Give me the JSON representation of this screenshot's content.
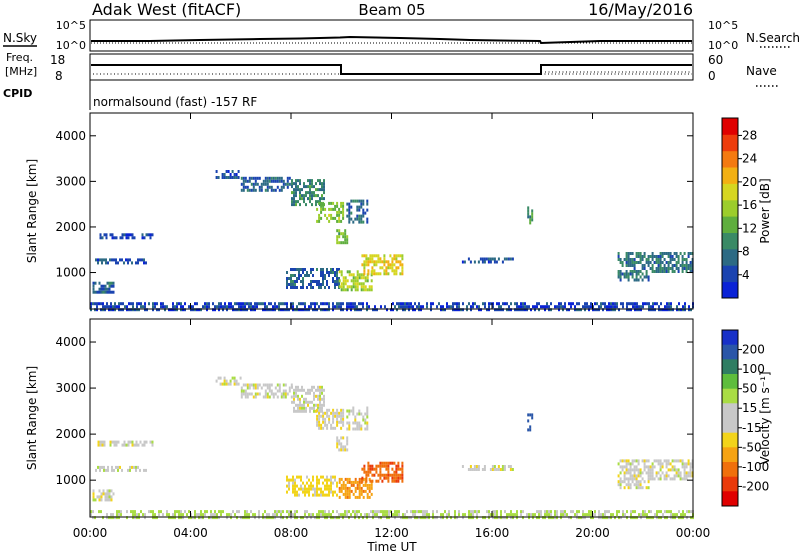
{
  "header": {
    "station": "Adak West (fitACF)",
    "beam": "Beam 05",
    "date": "16/May/2016"
  },
  "noise_panel": {
    "left_label": "N.Sky",
    "right_label": "N.Search",
    "tick_top": "10^5",
    "tick_bottom": "10^0"
  },
  "freq_panel": {
    "left_label_1": "Freq.",
    "left_label_2": "[MHz]",
    "left_ticks": [
      "18",
      "8"
    ],
    "right_label": "Nave",
    "right_ticks": [
      "60",
      "0"
    ]
  },
  "cpid": {
    "label": "CPID",
    "text": "normalsound (fast) -157 RF"
  },
  "chart_data": [
    {
      "type": "heatmap",
      "name": "power",
      "xlabel": "",
      "ylabel": "Slant Range [km]",
      "xlim": [
        0,
        24
      ],
      "ylim": [
        200,
        4500
      ],
      "ytick_labels": [
        "1000",
        "2000",
        "3000",
        "4000"
      ],
      "colorbar": {
        "label": "Power [dB]",
        "tick_labels": [
          "4",
          "8",
          "12",
          "16",
          "20",
          "24",
          "28"
        ],
        "range": [
          0,
          31
        ],
        "colors": [
          "#0a22d6",
          "#1a43b0",
          "#2c6a84",
          "#3a8a66",
          "#5fae3e",
          "#9ccd2c",
          "#d6d620",
          "#f3b012",
          "#f47a10",
          "#ee3c0c",
          "#e00000"
        ]
      },
      "features": [
        {
          "t": [
            0.0,
            24.0
          ],
          "range": [
            200,
            350
          ],
          "value": 4
        },
        {
          "t": [
            0.1,
            0.9
          ],
          "range": [
            600,
            800
          ],
          "value": 6
        },
        {
          "t": [
            0.2,
            2.2
          ],
          "range": [
            1200,
            1310
          ],
          "value": 5
        },
        {
          "t": [
            0.3,
            2.5
          ],
          "range": [
            1780,
            1860
          ],
          "value": 4
        },
        {
          "t": [
            5.0,
            6.0
          ],
          "range": [
            3100,
            3250
          ],
          "value": 5
        },
        {
          "t": [
            6.0,
            8.0
          ],
          "range": [
            2800,
            3100
          ],
          "value": 6
        },
        {
          "t": [
            8.0,
            9.3
          ],
          "range": [
            2500,
            3050
          ],
          "value": 9
        },
        {
          "t": [
            9.0,
            10.1
          ],
          "range": [
            2100,
            2550
          ],
          "value": 14
        },
        {
          "t": [
            9.8,
            10.2
          ],
          "range": [
            1650,
            1950
          ],
          "value": 13
        },
        {
          "t": [
            10.2,
            11.0
          ],
          "range": [
            2100,
            2600
          ],
          "value": 7
        },
        {
          "t": [
            7.8,
            9.9
          ],
          "range": [
            700,
            1100
          ],
          "value": 6
        },
        {
          "t": [
            9.9,
            11.2
          ],
          "range": [
            600,
            1050
          ],
          "value": 16
        },
        {
          "t": [
            10.8,
            12.4
          ],
          "range": [
            950,
            1400
          ],
          "value": 19
        },
        {
          "t": [
            14.8,
            16.8
          ],
          "range": [
            1250,
            1330
          ],
          "value": 5
        },
        {
          "t": [
            17.4,
            17.6
          ],
          "range": [
            2100,
            2450
          ],
          "value": 10
        },
        {
          "t": [
            21.0,
            24.0
          ],
          "range": [
            1050,
            1450
          ],
          "value": 8
        },
        {
          "t": [
            21.0,
            22.2
          ],
          "range": [
            820,
            1000
          ],
          "value": 7
        }
      ]
    },
    {
      "type": "heatmap",
      "name": "velocity",
      "xlabel": "Time UT",
      "ylabel": "Slant Range [km]",
      "xlim": [
        0,
        24
      ],
      "ylim": [
        200,
        4500
      ],
      "xtick_labels": [
        "00:00",
        "04:00",
        "08:00",
        "12:00",
        "16:00",
        "20:00",
        "00:00"
      ],
      "ytick_labels": [
        "1000",
        "2000",
        "3000",
        "4000"
      ],
      "colorbar": {
        "label": "Velocity [m s⁻¹]",
        "tick_labels": [
          "200",
          "100",
          "50",
          "15",
          "-15",
          "-50",
          "-100",
          "-200"
        ],
        "colors": [
          "#1730c8",
          "#2a56a8",
          "#2f7d62",
          "#5ebd3c",
          "#a9dc44",
          "#c8c8c8",
          "#c8c8c8",
          "#f2d41a",
          "#f6a312",
          "#f0700c",
          "#ea3a0a",
          "#e00000"
        ]
      },
      "features": [
        {
          "t": [
            0.0,
            24.0
          ],
          "range": [
            200,
            350
          ],
          "value": 20
        },
        {
          "t": [
            0.1,
            0.9
          ],
          "range": [
            600,
            800
          ],
          "value": 0
        },
        {
          "t": [
            0.2,
            2.2
          ],
          "range": [
            1200,
            1310
          ],
          "value": 0
        },
        {
          "t": [
            0.3,
            2.5
          ],
          "range": [
            1780,
            1860
          ],
          "value": 0
        },
        {
          "t": [
            5.0,
            6.0
          ],
          "range": [
            3100,
            3250
          ],
          "value": 0
        },
        {
          "t": [
            6.0,
            8.0
          ],
          "range": [
            2800,
            3100
          ],
          "value": 0
        },
        {
          "t": [
            8.0,
            9.3
          ],
          "range": [
            2500,
            3050
          ],
          "value": 0
        },
        {
          "t": [
            9.0,
            10.1
          ],
          "range": [
            2100,
            2550
          ],
          "value": -5
        },
        {
          "t": [
            9.8,
            10.2
          ],
          "range": [
            1650,
            1950
          ],
          "value": -10
        },
        {
          "t": [
            10.2,
            11.0
          ],
          "range": [
            2100,
            2600
          ],
          "value": 0
        },
        {
          "t": [
            7.8,
            9.9
          ],
          "range": [
            700,
            1100
          ],
          "value": -30
        },
        {
          "t": [
            9.9,
            11.2
          ],
          "range": [
            600,
            1050
          ],
          "value": -90
        },
        {
          "t": [
            10.8,
            12.4
          ],
          "range": [
            950,
            1400
          ],
          "value": -140
        },
        {
          "t": [
            14.8,
            16.8
          ],
          "range": [
            1250,
            1330
          ],
          "value": 0
        },
        {
          "t": [
            17.4,
            17.6
          ],
          "range": [
            2100,
            2450
          ],
          "value": 180
        },
        {
          "t": [
            21.0,
            24.0
          ],
          "range": [
            1050,
            1450
          ],
          "value": 0
        },
        {
          "t": [
            21.0,
            22.2
          ],
          "range": [
            820,
            1000
          ],
          "value": 0
        }
      ]
    }
  ]
}
